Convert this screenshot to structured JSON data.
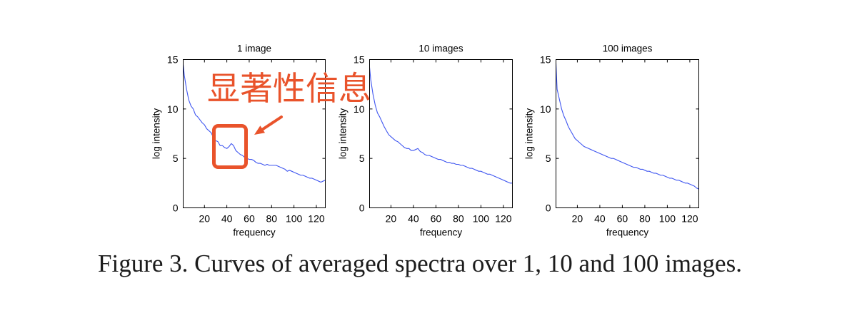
{
  "caption": "Figure 3. Curves of averaged spectra over 1, 10 and 100 images.",
  "annotation": {
    "text": "显著性信息",
    "color": "#E9532B"
  },
  "chart_data": [
    {
      "type": "line",
      "title": "1 image",
      "xlabel": "frequency",
      "ylabel": "log intensity",
      "xlim": [
        1,
        128
      ],
      "ylim": [
        0,
        15
      ],
      "xticks": [
        20,
        40,
        60,
        80,
        100,
        120
      ],
      "yticks": [
        0,
        5,
        10,
        15
      ],
      "grid": false,
      "x": [
        1,
        2,
        4,
        6,
        8,
        10,
        12,
        14,
        16,
        18,
        20,
        22,
        24,
        26,
        28,
        30,
        32,
        34,
        36,
        38,
        40,
        42,
        44,
        46,
        48,
        50,
        52,
        54,
        56,
        58,
        60,
        62,
        64,
        66,
        68,
        70,
        72,
        74,
        76,
        78,
        80,
        82,
        84,
        86,
        88,
        90,
        92,
        94,
        96,
        98,
        100,
        102,
        104,
        106,
        108,
        110,
        112,
        114,
        116,
        118,
        120,
        122,
        124,
        126,
        128
      ],
      "series": [
        {
          "color": "#3F56F0",
          "values": [
            14.5,
            13.4,
            12.0,
            10.9,
            10.3,
            10.0,
            9.4,
            9.2,
            8.9,
            8.6,
            8.4,
            8.0,
            7.8,
            7.6,
            7.1,
            6.8,
            6.7,
            6.3,
            6.3,
            6.1,
            6.0,
            6.2,
            6.5,
            6.3,
            5.8,
            5.6,
            5.4,
            5.3,
            5.1,
            5.0,
            4.9,
            4.9,
            4.8,
            4.6,
            4.5,
            4.5,
            4.4,
            4.3,
            4.4,
            4.3,
            4.3,
            4.3,
            4.3,
            4.2,
            4.1,
            4.0,
            3.9,
            3.7,
            3.8,
            3.7,
            3.6,
            3.5,
            3.4,
            3.3,
            3.3,
            3.2,
            3.1,
            3.0,
            3.0,
            2.9,
            2.8,
            2.7,
            2.6,
            2.7,
            2.8
          ]
        }
      ]
    },
    {
      "type": "line",
      "title": "10 images",
      "xlabel": "frequency",
      "ylabel": "log intensity",
      "xlim": [
        1,
        128
      ],
      "ylim": [
        0,
        15
      ],
      "xticks": [
        20,
        40,
        60,
        80,
        100,
        120
      ],
      "yticks": [
        0,
        5,
        10,
        15
      ],
      "grid": false,
      "x": [
        1,
        2,
        4,
        6,
        8,
        10,
        12,
        14,
        16,
        18,
        20,
        22,
        24,
        26,
        28,
        30,
        32,
        34,
        36,
        38,
        40,
        42,
        44,
        46,
        48,
        50,
        52,
        54,
        56,
        58,
        60,
        62,
        64,
        66,
        68,
        70,
        72,
        74,
        76,
        78,
        80,
        82,
        84,
        86,
        88,
        90,
        92,
        94,
        96,
        98,
        100,
        102,
        104,
        106,
        108,
        110,
        112,
        114,
        116,
        118,
        120,
        122,
        124,
        126,
        128
      ],
      "series": [
        {
          "color": "#3F56F0",
          "values": [
            14.2,
            13.0,
            11.5,
            10.4,
            9.6,
            9.2,
            8.7,
            8.2,
            7.8,
            7.4,
            7.2,
            7.0,
            6.8,
            6.7,
            6.5,
            6.3,
            6.1,
            6.0,
            6.0,
            5.8,
            5.8,
            5.9,
            6.0,
            5.7,
            5.6,
            5.4,
            5.3,
            5.3,
            5.2,
            5.1,
            5.0,
            4.9,
            4.9,
            4.8,
            4.7,
            4.6,
            4.6,
            4.5,
            4.5,
            4.4,
            4.4,
            4.3,
            4.3,
            4.2,
            4.1,
            4.0,
            4.0,
            3.9,
            3.8,
            3.7,
            3.7,
            3.6,
            3.5,
            3.4,
            3.4,
            3.3,
            3.2,
            3.1,
            3.0,
            2.9,
            2.8,
            2.7,
            2.6,
            2.5,
            2.5
          ]
        }
      ]
    },
    {
      "type": "line",
      "title": "100 images",
      "xlabel": "frequency",
      "ylabel": "log intensity",
      "xlim": [
        1,
        128
      ],
      "ylim": [
        0,
        15
      ],
      "xticks": [
        20,
        40,
        60,
        80,
        100,
        120
      ],
      "yticks": [
        0,
        5,
        10,
        15
      ],
      "grid": false,
      "x": [
        1,
        2,
        4,
        6,
        8,
        10,
        12,
        14,
        16,
        18,
        20,
        22,
        24,
        26,
        28,
        30,
        32,
        34,
        36,
        38,
        40,
        42,
        44,
        46,
        48,
        50,
        52,
        54,
        56,
        58,
        60,
        62,
        64,
        66,
        68,
        70,
        72,
        74,
        76,
        78,
        80,
        82,
        84,
        86,
        88,
        90,
        92,
        94,
        96,
        98,
        100,
        102,
        104,
        106,
        108,
        110,
        112,
        114,
        116,
        118,
        120,
        122,
        124,
        126,
        128
      ],
      "series": [
        {
          "color": "#3F56F0",
          "values": [
            14.6,
            12.0,
            11.0,
            10.0,
            9.3,
            8.8,
            8.2,
            7.8,
            7.4,
            7.0,
            6.8,
            6.6,
            6.4,
            6.2,
            6.1,
            6.0,
            5.9,
            5.8,
            5.7,
            5.6,
            5.5,
            5.4,
            5.3,
            5.2,
            5.1,
            5.0,
            5.0,
            4.9,
            4.8,
            4.7,
            4.6,
            4.5,
            4.4,
            4.3,
            4.2,
            4.1,
            4.1,
            4.0,
            3.9,
            3.9,
            3.8,
            3.7,
            3.7,
            3.6,
            3.5,
            3.5,
            3.4,
            3.3,
            3.3,
            3.2,
            3.1,
            3.0,
            3.0,
            2.9,
            2.8,
            2.8,
            2.7,
            2.6,
            2.5,
            2.5,
            2.4,
            2.3,
            2.2,
            2.0,
            1.9
          ]
        }
      ]
    }
  ]
}
